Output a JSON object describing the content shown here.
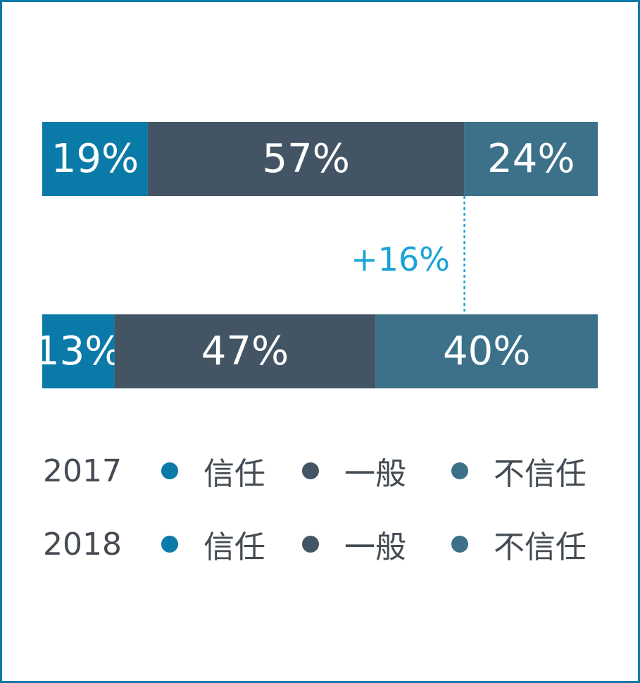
{
  "chart_data": {
    "type": "bar",
    "orientation": "horizontal",
    "stacked": true,
    "categories": [
      "2017",
      "2018"
    ],
    "series": [
      {
        "name": "信任",
        "values": [
          19,
          13
        ],
        "color": "#0a7aa8"
      },
      {
        "name": "一般",
        "values": [
          57,
          47
        ],
        "color": "#435564"
      },
      {
        "name": "不信任",
        "values": [
          24,
          40
        ],
        "color": "#3d7189"
      }
    ],
    "value_labels": [
      [
        "19%",
        "57%",
        "24%"
      ],
      [
        "13%",
        "47%",
        "40%"
      ]
    ],
    "annotation": {
      "text": "+16%",
      "color": "#1aa3d8",
      "marks_series": "不信任"
    },
    "xlim": [
      0,
      100
    ]
  },
  "legend": {
    "rows": [
      {
        "year": "2017",
        "items": [
          "信任",
          "一般",
          "不信任"
        ]
      },
      {
        "year": "2018",
        "items": [
          "信任",
          "一般",
          "不信任"
        ]
      }
    ]
  }
}
